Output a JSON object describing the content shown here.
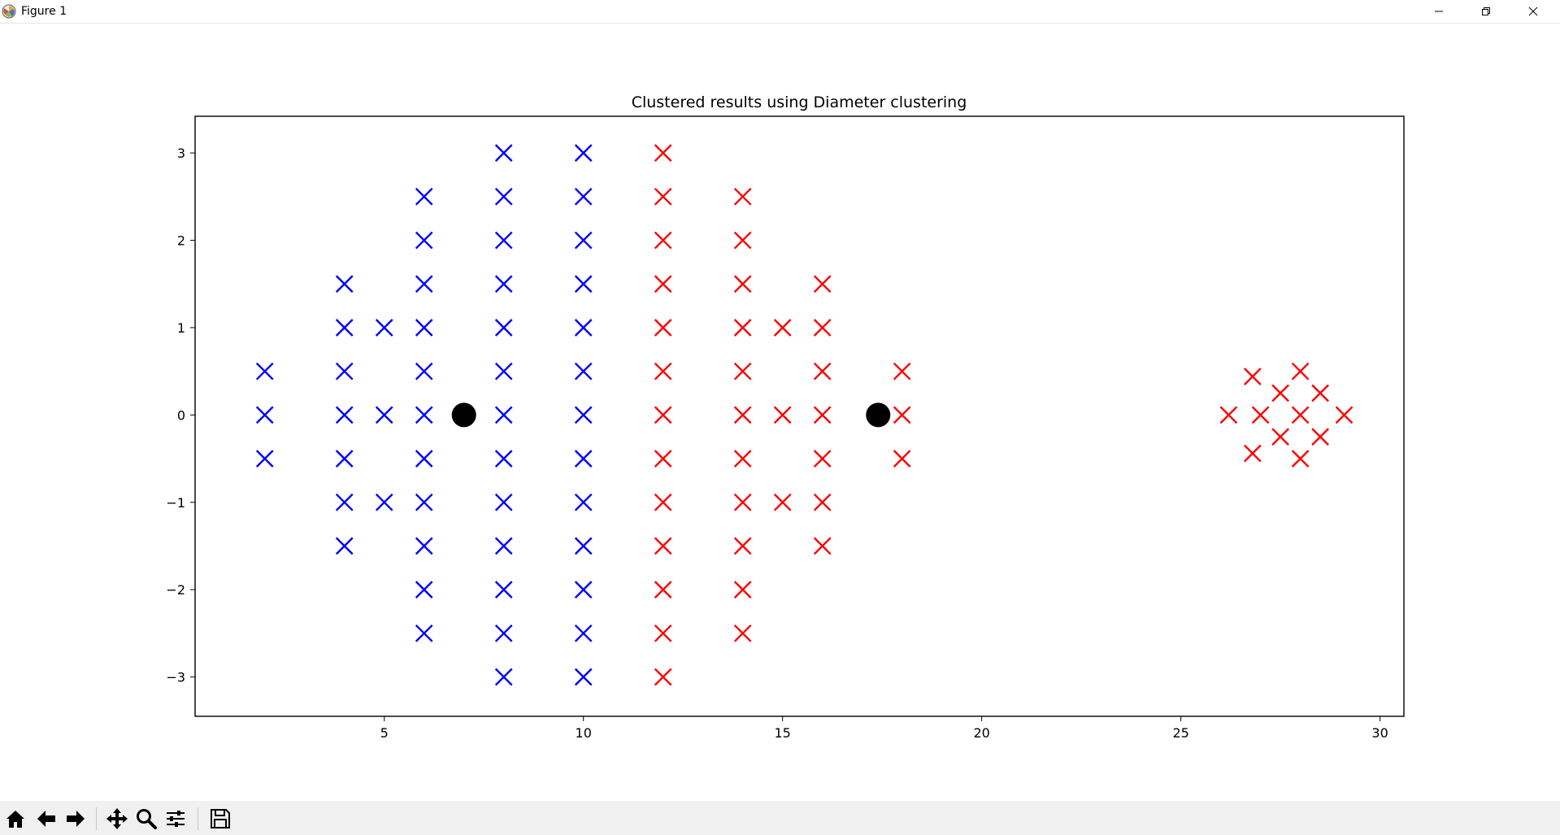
{
  "window": {
    "title": "Figure 1",
    "controls": [
      "minimize-icon",
      "restore-icon",
      "close-icon"
    ]
  },
  "toolbar": {
    "buttons": [
      "home-icon",
      "back-icon",
      "forward-icon",
      "pan-icon",
      "zoom-icon",
      "configure-subplots-icon",
      "save-icon"
    ]
  },
  "colors": {
    "cluster_blue": "#0000ff",
    "cluster_red": "#ff0000",
    "centroid": "#000000"
  },
  "chart_data": {
    "type": "scatter",
    "title": "Clustered results using Diameter clustering",
    "xlabel": "",
    "ylabel": "",
    "xlim": [
      0.25,
      30.6
    ],
    "ylim": [
      -3.45,
      3.42
    ],
    "xticks": [
      5,
      10,
      15,
      20,
      25,
      30
    ],
    "yticks": [
      3,
      2,
      1,
      0,
      -1,
      -2,
      -3
    ],
    "ytick_labels": [
      "3",
      "2",
      "1",
      "0",
      "−1",
      "−2",
      "−3"
    ],
    "grid": false,
    "legend": null,
    "series": [
      {
        "marker": "x",
        "color": "#0000ff",
        "points": [
          [
            2,
            0.5
          ],
          [
            2,
            0
          ],
          [
            2,
            -0.5
          ],
          [
            4,
            1.5
          ],
          [
            4,
            1
          ],
          [
            4,
            0.5
          ],
          [
            4,
            0
          ],
          [
            4,
            -0.5
          ],
          [
            4,
            -1
          ],
          [
            4,
            -1.5
          ],
          [
            5,
            1
          ],
          [
            5,
            0
          ],
          [
            5,
            -1
          ],
          [
            6,
            2.5
          ],
          [
            6,
            2
          ],
          [
            6,
            1.5
          ],
          [
            6,
            1
          ],
          [
            6,
            0.5
          ],
          [
            6,
            0
          ],
          [
            6,
            -0.5
          ],
          [
            6,
            -1
          ],
          [
            6,
            -1.5
          ],
          [
            6,
            -2
          ],
          [
            6,
            -2.5
          ],
          [
            8,
            3
          ],
          [
            8,
            2.5
          ],
          [
            8,
            2
          ],
          [
            8,
            1.5
          ],
          [
            8,
            1
          ],
          [
            8,
            0.5
          ],
          [
            8,
            0
          ],
          [
            8,
            -0.5
          ],
          [
            8,
            -1
          ],
          [
            8,
            -1.5
          ],
          [
            8,
            -2
          ],
          [
            8,
            -2.5
          ],
          [
            8,
            -3
          ],
          [
            10,
            3
          ],
          [
            10,
            2.5
          ],
          [
            10,
            2
          ],
          [
            10,
            1.5
          ],
          [
            10,
            1
          ],
          [
            10,
            0.5
          ],
          [
            10,
            0
          ],
          [
            10,
            -0.5
          ],
          [
            10,
            -1
          ],
          [
            10,
            -1.5
          ],
          [
            10,
            -2
          ],
          [
            10,
            -2.5
          ],
          [
            10,
            -3
          ]
        ]
      },
      {
        "marker": "x",
        "color": "#ff0000",
        "points": [
          [
            12,
            3
          ],
          [
            12,
            2.5
          ],
          [
            12,
            2
          ],
          [
            12,
            1.5
          ],
          [
            12,
            1
          ],
          [
            12,
            0.5
          ],
          [
            12,
            0
          ],
          [
            12,
            -0.5
          ],
          [
            12,
            -1
          ],
          [
            12,
            -1.5
          ],
          [
            12,
            -2
          ],
          [
            12,
            -2.5
          ],
          [
            12,
            -3
          ],
          [
            14,
            2.5
          ],
          [
            14,
            2
          ],
          [
            14,
            1.5
          ],
          [
            14,
            1
          ],
          [
            14,
            0.5
          ],
          [
            14,
            0
          ],
          [
            14,
            -0.5
          ],
          [
            14,
            -1
          ],
          [
            14,
            -1.5
          ],
          [
            14,
            -2
          ],
          [
            14,
            -2.5
          ],
          [
            15,
            1
          ],
          [
            15,
            0
          ],
          [
            15,
            -1
          ],
          [
            16,
            1.5
          ],
          [
            16,
            1
          ],
          [
            16,
            0.5
          ],
          [
            16,
            0
          ],
          [
            16,
            -0.5
          ],
          [
            16,
            -1
          ],
          [
            16,
            -1.5
          ],
          [
            18,
            0.5
          ],
          [
            18,
            0
          ],
          [
            18,
            -0.5
          ],
          [
            26.2,
            0
          ],
          [
            27,
            0
          ],
          [
            28,
            0
          ],
          [
            29.1,
            0
          ],
          [
            26.8,
            0.44
          ],
          [
            26.8,
            -0.44
          ],
          [
            28,
            0.5
          ],
          [
            28,
            -0.5
          ],
          [
            27.5,
            0.25
          ],
          [
            28.5,
            0.25
          ],
          [
            27.5,
            -0.25
          ],
          [
            28.5,
            -0.25
          ]
        ]
      },
      {
        "marker": "o",
        "color": "#000000",
        "points": [
          [
            7,
            0
          ],
          [
            17.4,
            0
          ]
        ]
      }
    ]
  }
}
